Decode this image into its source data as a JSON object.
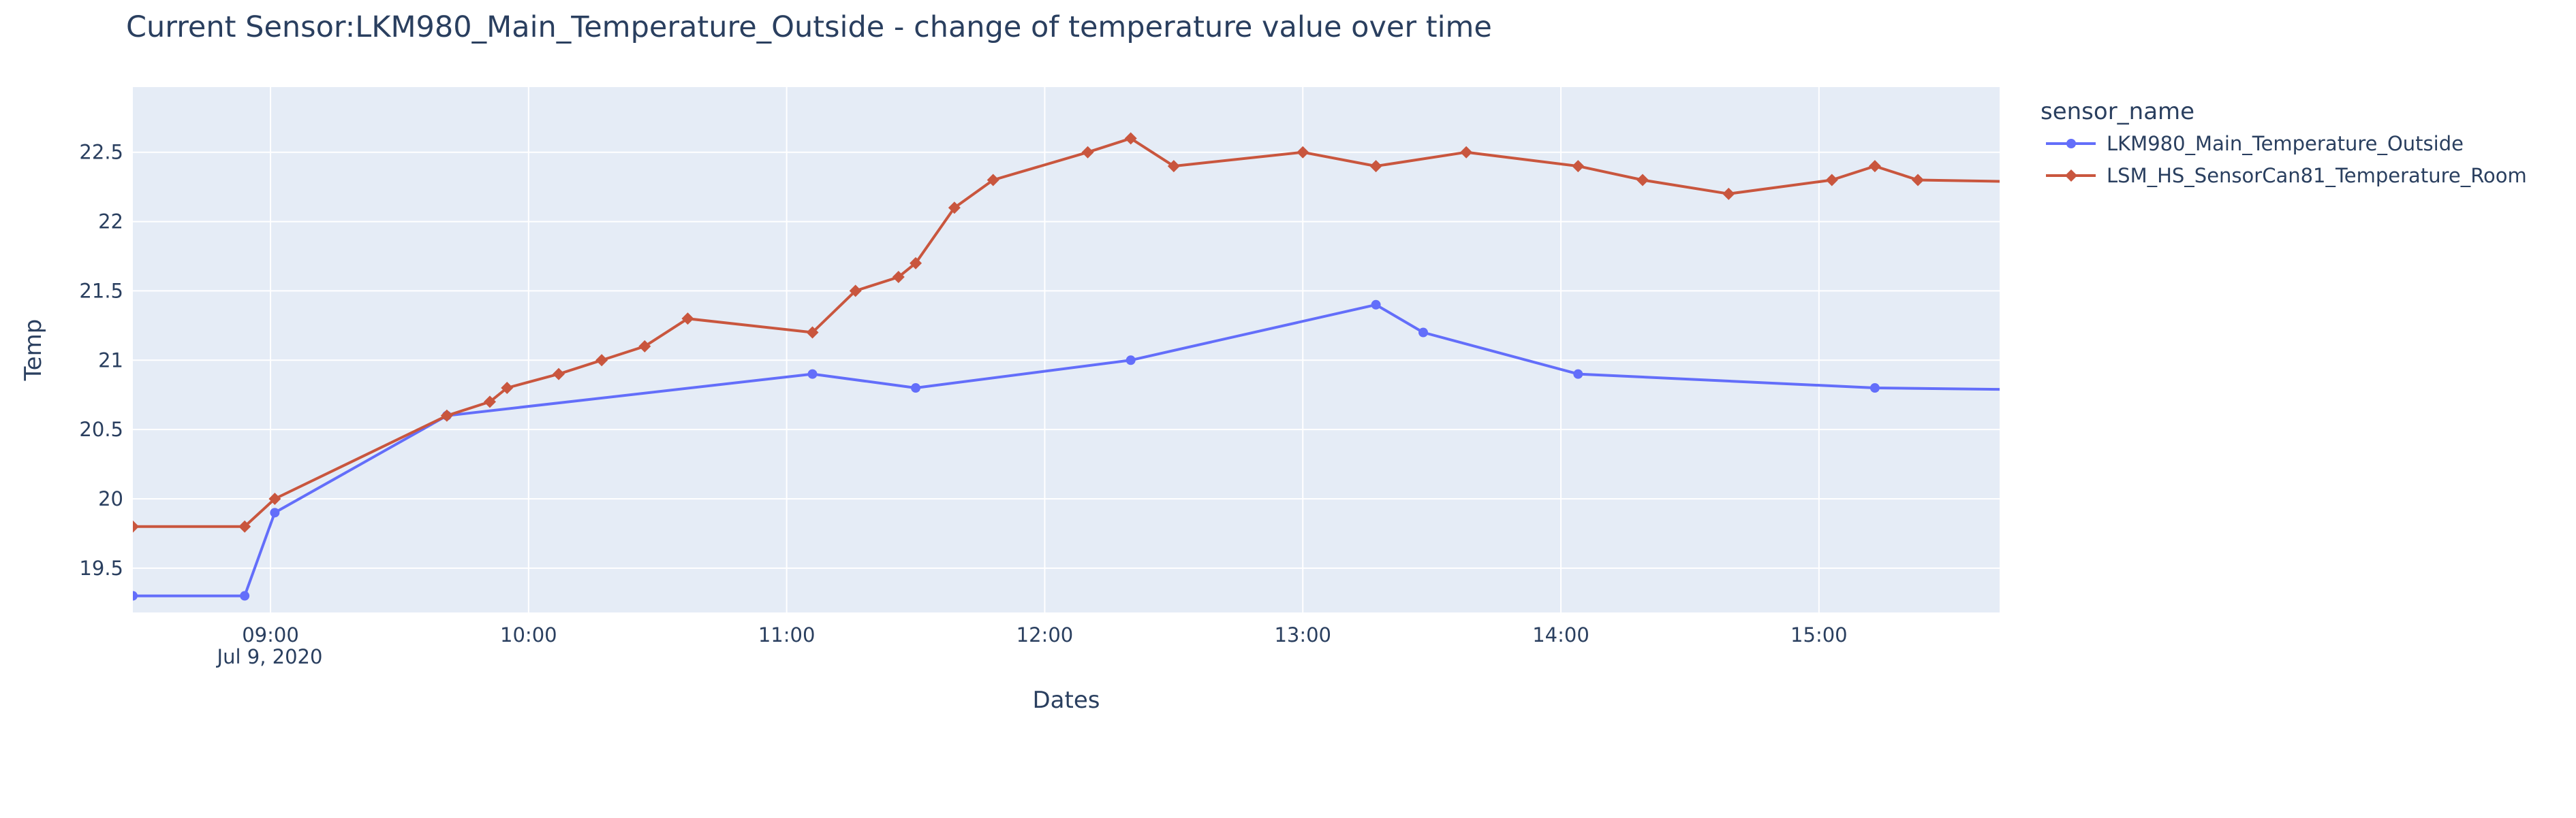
{
  "chart_data": {
    "type": "line",
    "title": "Current Sensor:LKM980_Main_Temperature_Outside - change of temperature value over time",
    "xlabel": "Dates",
    "ylabel": "Temp",
    "x_date": "Jul 9, 2020",
    "xlim": [
      "08:28",
      "15:42"
    ],
    "ylim": [
      19.18,
      22.97
    ],
    "x_ticks": [
      "09:00",
      "10:00",
      "11:00",
      "12:00",
      "13:00",
      "14:00",
      "15:00"
    ],
    "y_ticks": [
      19.5,
      20,
      20.5,
      21,
      21.5,
      22,
      22.5
    ],
    "y_tick_labels": [
      "19.5",
      "20",
      "20.5",
      "21",
      "21.5",
      "22",
      "22.5"
    ],
    "grid": true,
    "legend": {
      "title": "sensor_name",
      "position": "top-right-outside"
    },
    "series": [
      {
        "name": "LKM980_Main_Temperature_Outside",
        "color": "#636efa",
        "marker": "circle",
        "points": [
          [
            "08:28",
            19.3
          ],
          [
            "08:54",
            19.3
          ],
          [
            "09:01",
            19.9
          ],
          [
            "09:41",
            20.6
          ],
          [
            "11:06",
            20.9
          ],
          [
            "11:30",
            20.8
          ],
          [
            "12:20",
            21.0
          ],
          [
            "13:17",
            21.4
          ],
          [
            "13:28",
            21.2
          ],
          [
            "14:04",
            20.9
          ],
          [
            "15:13",
            20.8
          ],
          [
            "15:42",
            20.79
          ]
        ]
      },
      {
        "name": "LSM_HS_SensorCan81_Temperature_Room",
        "color": "#c9563e",
        "marker": "diamond",
        "points": [
          [
            "08:28",
            19.8
          ],
          [
            "08:54",
            19.8
          ],
          [
            "09:01",
            20.0
          ],
          [
            "09:41",
            20.6
          ],
          [
            "09:51",
            20.7
          ],
          [
            "09:55",
            20.8
          ],
          [
            "10:07",
            20.9
          ],
          [
            "10:17",
            21.0
          ],
          [
            "10:27",
            21.1
          ],
          [
            "10:37",
            21.3
          ],
          [
            "11:06",
            21.2
          ],
          [
            "11:16",
            21.5
          ],
          [
            "11:26",
            21.6
          ],
          [
            "11:30",
            21.7
          ],
          [
            "11:39",
            22.1
          ],
          [
            "11:48",
            22.3
          ],
          [
            "12:10",
            22.5
          ],
          [
            "12:20",
            22.6
          ],
          [
            "12:30",
            22.4
          ],
          [
            "13:00",
            22.5
          ],
          [
            "13:17",
            22.4
          ],
          [
            "13:38",
            22.5
          ],
          [
            "14:04",
            22.4
          ],
          [
            "14:19",
            22.3
          ],
          [
            "14:39",
            22.2
          ],
          [
            "15:03",
            22.3
          ],
          [
            "15:13",
            22.4
          ],
          [
            "15:23",
            22.3
          ],
          [
            "15:42",
            22.29
          ]
        ]
      }
    ]
  }
}
